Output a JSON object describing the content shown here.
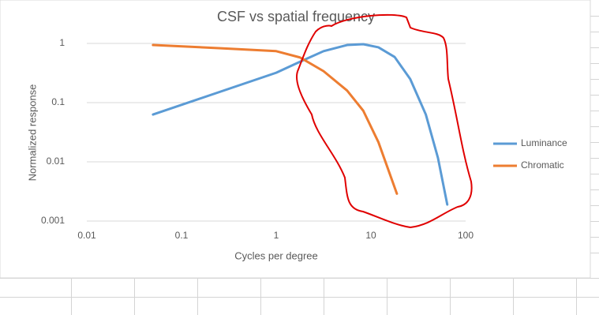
{
  "chart_data": {
    "type": "line",
    "title": "CSF vs spatial frequency",
    "xlabel": "Cycles per degree",
    "ylabel": "Normalized response",
    "xscale": "log",
    "yscale": "log",
    "xlim": [
      0.01,
      100
    ],
    "xticks": [
      0.01,
      0.1,
      1,
      10,
      100
    ],
    "ylim": [
      0.001,
      1
    ],
    "yticks": [
      0.001,
      0.01,
      0.1,
      1
    ],
    "grid": true,
    "legend": "right",
    "series": [
      {
        "name": "Luminance",
        "color": "#5b9bd5",
        "x": [
          0.05,
          1,
          1.78,
          3.16,
          5.6,
          8.3,
          12,
          17.8,
          26,
          38,
          51,
          64
        ],
        "values": [
          0.063,
          0.32,
          0.49,
          0.74,
          0.94,
          0.97,
          0.86,
          0.59,
          0.25,
          0.063,
          0.0117,
          0.0019
        ]
      },
      {
        "name": "Chromatic",
        "color": "#ed7d31",
        "x": [
          0.05,
          0.26,
          1,
          1.78,
          3.16,
          5.6,
          8.3,
          12,
          18.8
        ],
        "values": [
          0.94,
          0.83,
          0.74,
          0.58,
          0.34,
          0.16,
          0.073,
          0.0215,
          0.0029
        ]
      }
    ]
  }
}
